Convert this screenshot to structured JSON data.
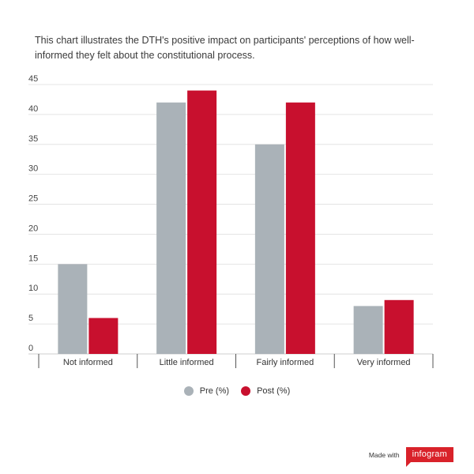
{
  "chart_data": {
    "type": "bar",
    "title": "This chart illustrates the DTH's positive impact on participants' perceptions of how well-informed they felt about the constitutional process.",
    "categories": [
      "Not informed",
      "Little informed",
      "Fairly informed",
      "Very informed"
    ],
    "series": [
      {
        "name": "Pre (%)",
        "color": "#aab2b8",
        "values": [
          15,
          42,
          35,
          8
        ]
      },
      {
        "name": "Post (%)",
        "color": "#c8102e",
        "values": [
          6,
          44,
          42,
          9
        ]
      }
    ],
    "y_ticks": [
      "0",
      "5",
      "10",
      "15",
      "20",
      "25",
      "30",
      "35",
      "40",
      "45"
    ],
    "ylim": [
      0,
      45
    ],
    "xlabel": "",
    "ylabel": "",
    "grid": true,
    "legend_position": "bottom-center"
  },
  "footer": {
    "made_with": "Made with",
    "brand": "infogram"
  }
}
